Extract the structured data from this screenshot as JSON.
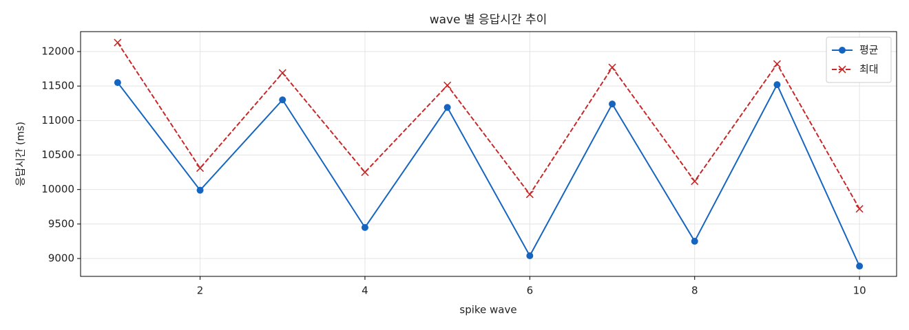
{
  "chart_data": {
    "type": "line",
    "title": "wave 별 응답시간 추이",
    "xlabel": "spike wave",
    "ylabel": "응답시간 (ms)",
    "x": [
      1,
      2,
      3,
      4,
      5,
      6,
      7,
      8,
      9,
      10
    ],
    "xlim": [
      0.55,
      10.45
    ],
    "xticks": [
      2,
      4,
      6,
      8,
      10
    ],
    "ylim": [
      8741,
      12289
    ],
    "yticks": [
      9000,
      9500,
      10000,
      10500,
      11000,
      11500,
      12000
    ],
    "grid": true,
    "legend": "upper right",
    "series": [
      {
        "name": "평균",
        "color": "#1565c0",
        "marker": "circle",
        "dash": "solid",
        "values": [
          11550,
          9990,
          11300,
          9450,
          11190,
          9040,
          11240,
          9250,
          11520,
          8890
        ]
      },
      {
        "name": "최대",
        "color": "#c62828",
        "marker": "x",
        "dash": "dashed",
        "values": [
          12130,
          10310,
          11690,
          10250,
          11510,
          9930,
          11770,
          10120,
          11820,
          9720
        ]
      }
    ]
  }
}
